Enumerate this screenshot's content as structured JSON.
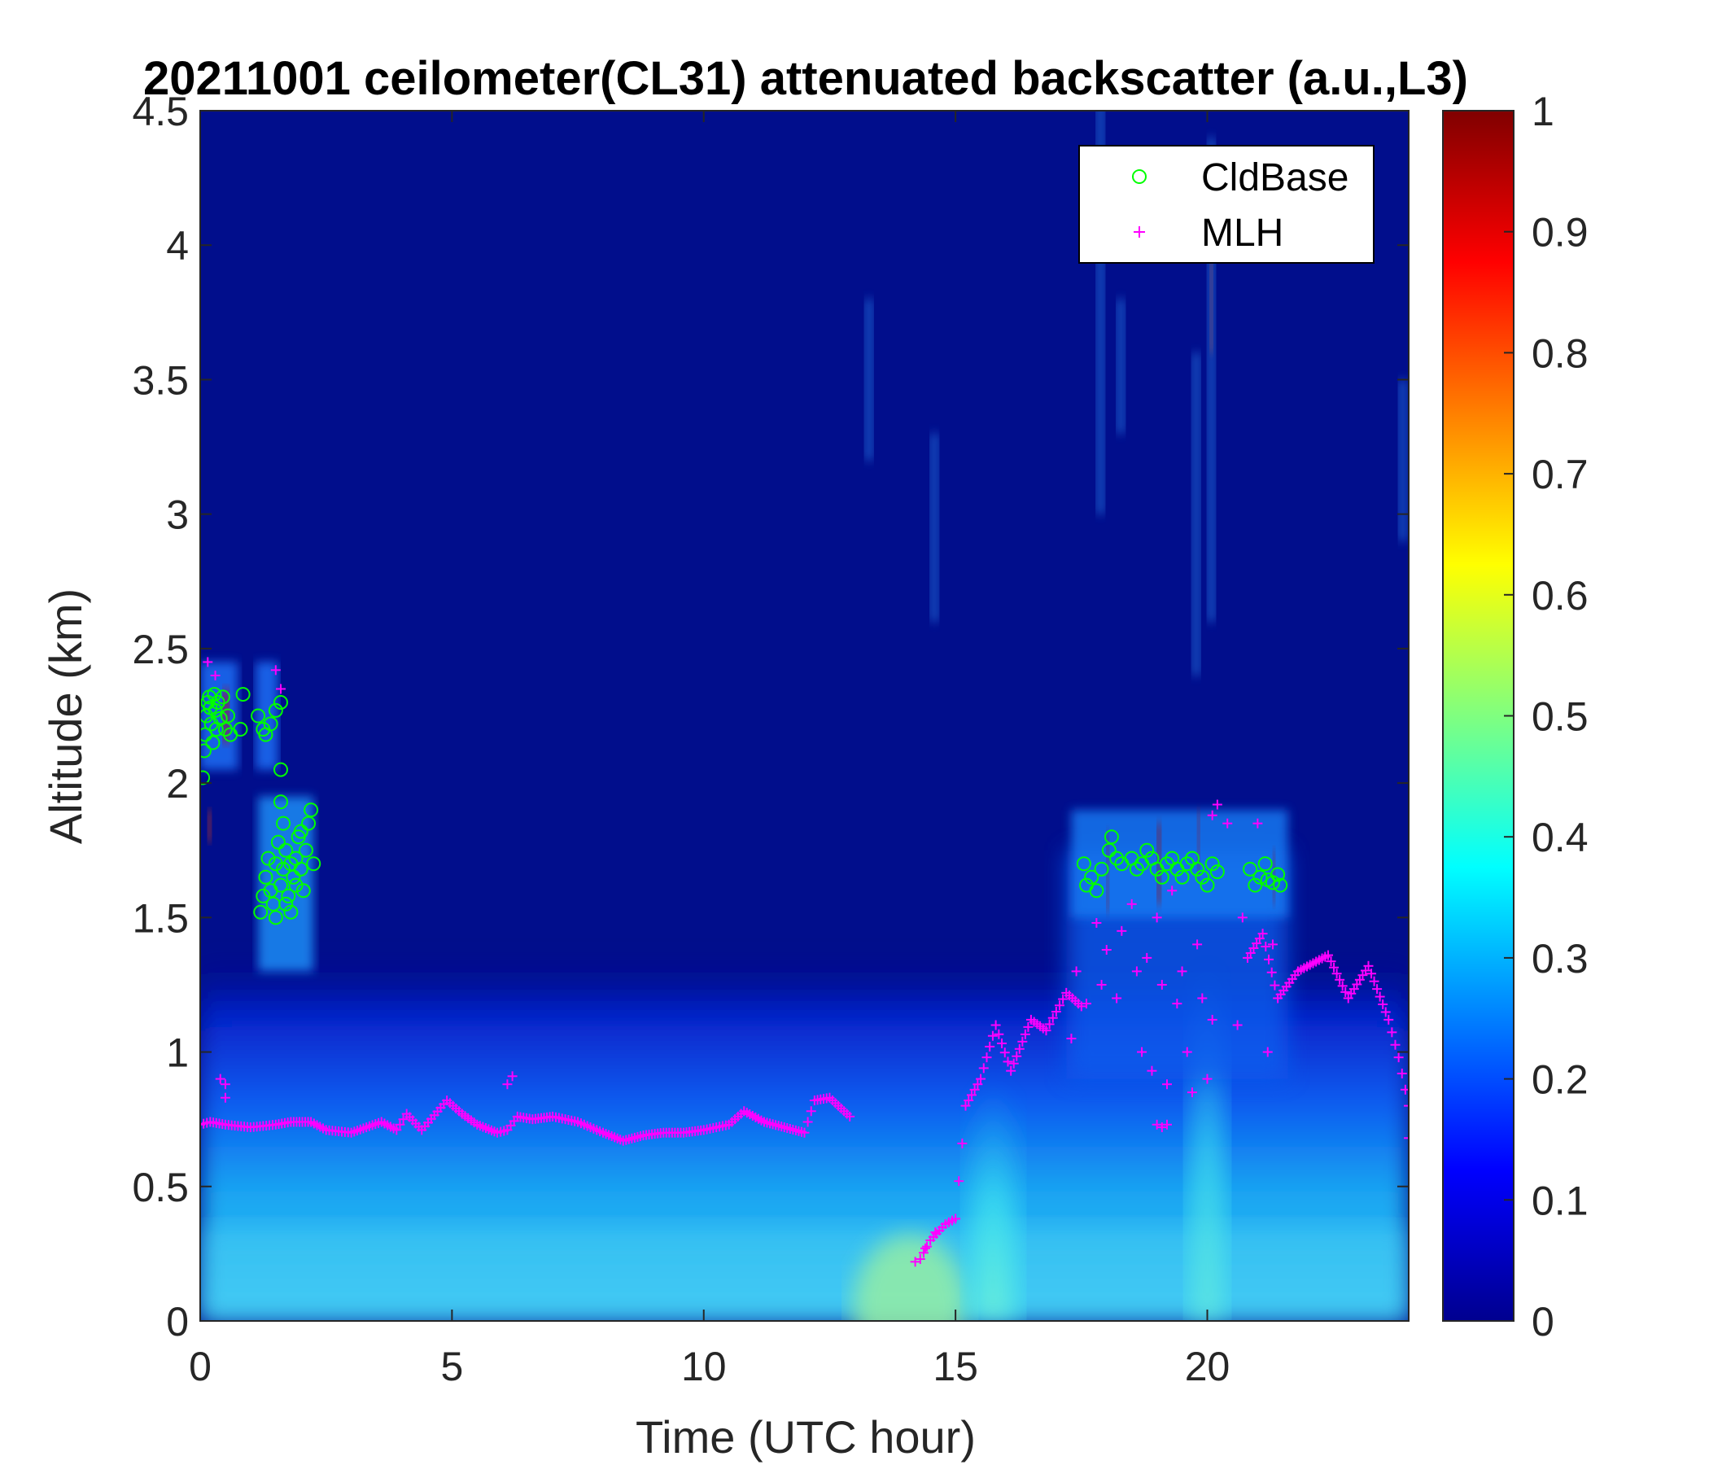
{
  "chart_data": {
    "type": "heatmap",
    "title": "20211001 ceilometer(CL31) attenuated backscatter (a.u.,L3)",
    "xlabel": "Time (UTC hour)",
    "ylabel": "Altitude (km)",
    "xlim": [
      0,
      24
    ],
    "ylim": [
      0,
      4.5
    ],
    "xticks": [
      0,
      5,
      10,
      15,
      20
    ],
    "xtick_labels": [
      "0",
      "5",
      "10",
      "15",
      "20"
    ],
    "yticks": [
      0,
      0.5,
      1,
      1.5,
      2,
      2.5,
      3,
      3.5,
      4,
      4.5
    ],
    "ytick_labels": [
      "0",
      "0.5",
      "1",
      "1.5",
      "2",
      "2.5",
      "3",
      "3.5",
      "4",
      "4.5"
    ],
    "colorbar": {
      "colormap": "jet",
      "range": [
        0,
        1
      ],
      "ticks": [
        0,
        0.1,
        0.2,
        0.3,
        0.4,
        0.5,
        0.6,
        0.7,
        0.8,
        0.9,
        1
      ],
      "tick_labels": [
        "0",
        "0.1",
        "0.2",
        "0.3",
        "0.4",
        "0.5",
        "0.6",
        "0.7",
        "0.8",
        "0.9",
        "1"
      ]
    },
    "legend": {
      "location": "top-right",
      "entries": [
        {
          "label": "CldBase",
          "marker": "circle",
          "color": "#00ff00"
        },
        {
          "label": "MLH",
          "marker": "plus",
          "color": "#ff00ff"
        }
      ]
    },
    "series": [
      {
        "name": "CldBase",
        "marker": "circle",
        "color": "#00ff00",
        "points": [
          [
            0.05,
            2.02
          ],
          [
            0.08,
            2.12
          ],
          [
            0.1,
            2.18
          ],
          [
            0.12,
            2.25
          ],
          [
            0.15,
            2.3
          ],
          [
            0.18,
            2.32
          ],
          [
            0.2,
            2.28
          ],
          [
            0.22,
            2.22
          ],
          [
            0.25,
            2.15
          ],
          [
            0.28,
            2.33
          ],
          [
            0.3,
            2.27
          ],
          [
            0.32,
            2.2
          ],
          [
            0.35,
            2.3
          ],
          [
            0.4,
            2.24
          ],
          [
            0.45,
            2.32
          ],
          [
            0.5,
            2.2
          ],
          [
            0.55,
            2.25
          ],
          [
            0.6,
            2.18
          ],
          [
            0.8,
            2.2
          ],
          [
            0.85,
            2.33
          ],
          [
            1.15,
            2.25
          ],
          [
            1.25,
            2.2
          ],
          [
            1.3,
            2.18
          ],
          [
            1.4,
            2.22
          ],
          [
            1.5,
            2.27
          ],
          [
            1.6,
            2.3
          ],
          [
            1.6,
            2.05
          ],
          [
            1.6,
            1.93
          ],
          [
            1.65,
            1.85
          ],
          [
            1.2,
            1.52
          ],
          [
            1.25,
            1.58
          ],
          [
            1.3,
            1.65
          ],
          [
            1.35,
            1.72
          ],
          [
            1.4,
            1.6
          ],
          [
            1.45,
            1.55
          ],
          [
            1.5,
            1.7
          ],
          [
            1.55,
            1.78
          ],
          [
            1.6,
            1.62
          ],
          [
            1.65,
            1.68
          ],
          [
            1.7,
            1.75
          ],
          [
            1.75,
            1.58
          ],
          [
            1.8,
            1.52
          ],
          [
            1.85,
            1.65
          ],
          [
            1.9,
            1.72
          ],
          [
            1.95,
            1.8
          ],
          [
            2.0,
            1.68
          ],
          [
            2.05,
            1.6
          ],
          [
            2.1,
            1.75
          ],
          [
            2.15,
            1.85
          ],
          [
            2.2,
            1.9
          ],
          [
            2.25,
            1.7
          ],
          [
            1.9,
            1.62
          ],
          [
            1.7,
            1.55
          ],
          [
            1.5,
            1.5
          ],
          [
            1.8,
            1.7
          ],
          [
            2.0,
            1.82
          ],
          [
            17.55,
            1.7
          ],
          [
            17.6,
            1.62
          ],
          [
            17.7,
            1.65
          ],
          [
            17.8,
            1.6
          ],
          [
            17.9,
            1.68
          ],
          [
            18.05,
            1.75
          ],
          [
            18.1,
            1.8
          ],
          [
            18.2,
            1.72
          ],
          [
            18.3,
            1.7
          ],
          [
            18.5,
            1.72
          ],
          [
            18.6,
            1.68
          ],
          [
            18.7,
            1.7
          ],
          [
            18.8,
            1.75
          ],
          [
            18.9,
            1.72
          ],
          [
            19.0,
            1.68
          ],
          [
            19.1,
            1.65
          ],
          [
            19.2,
            1.7
          ],
          [
            19.3,
            1.72
          ],
          [
            19.4,
            1.68
          ],
          [
            19.5,
            1.65
          ],
          [
            19.6,
            1.7
          ],
          [
            19.7,
            1.72
          ],
          [
            19.8,
            1.68
          ],
          [
            19.9,
            1.65
          ],
          [
            20.0,
            1.62
          ],
          [
            20.1,
            1.7
          ],
          [
            20.2,
            1.67
          ],
          [
            20.85,
            1.68
          ],
          [
            20.95,
            1.62
          ],
          [
            21.05,
            1.65
          ],
          [
            21.15,
            1.7
          ],
          [
            21.2,
            1.64
          ],
          [
            21.3,
            1.63
          ],
          [
            21.4,
            1.66
          ],
          [
            21.45,
            1.62
          ]
        ]
      },
      {
        "name": "MLH",
        "marker": "plus",
        "color": "#ff00ff",
        "line": [
          [
            0.0,
            0.73
          ],
          [
            0.2,
            0.74
          ],
          [
            0.5,
            0.73
          ],
          [
            1.0,
            0.72
          ],
          [
            1.5,
            0.73
          ],
          [
            1.8,
            0.74
          ],
          [
            2.2,
            0.74
          ],
          [
            2.5,
            0.71
          ],
          [
            3.0,
            0.7
          ],
          [
            3.3,
            0.72
          ],
          [
            3.6,
            0.74
          ],
          [
            3.9,
            0.71
          ],
          [
            4.1,
            0.77
          ],
          [
            4.4,
            0.71
          ],
          [
            4.9,
            0.82
          ],
          [
            5.2,
            0.77
          ],
          [
            5.5,
            0.73
          ],
          [
            5.9,
            0.7
          ],
          [
            6.1,
            0.71
          ],
          [
            6.3,
            0.76
          ],
          [
            6.6,
            0.75
          ],
          [
            7.0,
            0.76
          ],
          [
            7.5,
            0.74
          ],
          [
            8.0,
            0.7
          ],
          [
            8.4,
            0.67
          ],
          [
            8.8,
            0.69
          ],
          [
            9.2,
            0.7
          ],
          [
            9.6,
            0.7
          ],
          [
            10.0,
            0.71
          ],
          [
            10.5,
            0.73
          ],
          [
            10.8,
            0.78
          ],
          [
            11.2,
            0.74
          ],
          [
            11.6,
            0.72
          ],
          [
            12.0,
            0.7
          ],
          [
            12.2,
            0.82
          ],
          [
            12.5,
            0.83
          ],
          [
            12.9,
            0.76
          ]
        ],
        "line2": [
          [
            14.3,
            0.23
          ],
          [
            14.5,
            0.3
          ],
          [
            14.8,
            0.36
          ],
          [
            15.0,
            0.38
          ],
          [
            15.2,
            0.8
          ],
          [
            15.5,
            0.9
          ],
          [
            15.8,
            1.1
          ],
          [
            16.1,
            0.93
          ],
          [
            16.5,
            1.12
          ],
          [
            16.8,
            1.08
          ],
          [
            17.0,
            1.15
          ],
          [
            17.2,
            1.22
          ],
          [
            17.5,
            1.17
          ]
        ],
        "line3": [
          [
            20.8,
            1.35
          ],
          [
            21.1,
            1.44
          ],
          [
            21.4,
            1.2
          ],
          [
            21.8,
            1.3
          ],
          [
            22.4,
            1.36
          ],
          [
            22.8,
            1.2
          ],
          [
            23.2,
            1.32
          ],
          [
            23.6,
            1.12
          ],
          [
            23.8,
            0.98
          ],
          [
            24.0,
            0.8
          ]
        ],
        "scatter": [
          [
            0.15,
            2.45
          ],
          [
            0.3,
            2.4
          ],
          [
            0.4,
            0.9
          ],
          [
            0.5,
            0.88
          ],
          [
            0.5,
            0.83
          ],
          [
            1.5,
            2.42
          ],
          [
            1.6,
            2.35
          ],
          [
            6.1,
            0.88
          ],
          [
            6.2,
            0.91
          ],
          [
            14.2,
            0.22
          ],
          [
            14.4,
            0.27
          ],
          [
            14.6,
            0.33
          ],
          [
            17.3,
            1.05
          ],
          [
            17.4,
            1.3
          ],
          [
            17.6,
            1.18
          ],
          [
            17.8,
            1.48
          ],
          [
            17.9,
            1.25
          ],
          [
            18.0,
            1.38
          ],
          [
            18.2,
            1.2
          ],
          [
            18.3,
            1.45
          ],
          [
            18.5,
            1.55
          ],
          [
            18.6,
            1.3
          ],
          [
            18.7,
            1.0
          ],
          [
            18.8,
            1.35
          ],
          [
            18.9,
            0.93
          ],
          [
            19.0,
            1.5
          ],
          [
            19.1,
            1.25
          ],
          [
            19.2,
            0.88
          ],
          [
            19.3,
            1.6
          ],
          [
            19.4,
            1.18
          ],
          [
            19.5,
            1.3
          ],
          [
            19.6,
            1.0
          ],
          [
            19.7,
            0.85
          ],
          [
            19.8,
            1.4
          ],
          [
            19.9,
            1.2
          ],
          [
            20.0,
            0.9
          ],
          [
            20.1,
            1.12
          ],
          [
            20.1,
            1.88
          ],
          [
            20.2,
            1.92
          ],
          [
            20.4,
            1.85
          ],
          [
            20.6,
            1.1
          ],
          [
            20.7,
            1.5
          ],
          [
            21.0,
            1.85
          ],
          [
            21.2,
            1.0
          ],
          [
            21.3,
            1.4
          ],
          [
            19.0,
            0.73
          ],
          [
            19.1,
            0.72
          ],
          [
            19.2,
            0.73
          ],
          [
            24.0,
            0.68
          ]
        ]
      }
    ]
  }
}
